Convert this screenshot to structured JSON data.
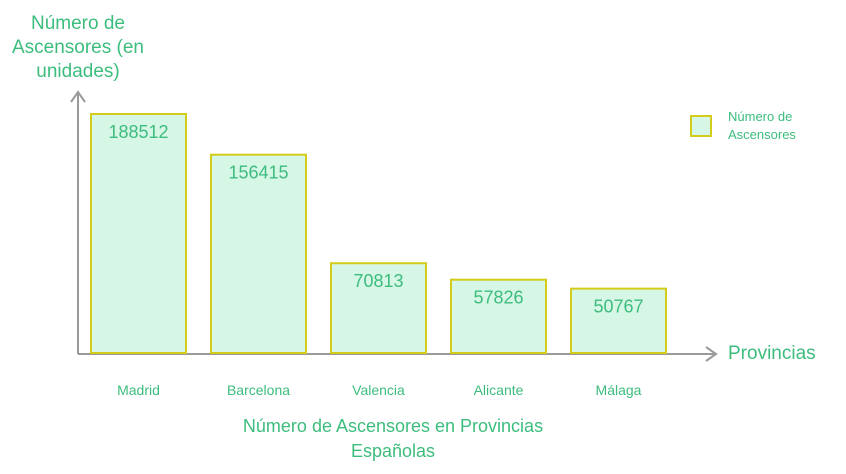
{
  "chart_data": {
    "type": "bar",
    "title": "Número de Ascensores en Provincias Españolas",
    "xlabel": "Provincias",
    "ylabel": "Número de Ascensores (en unidades)",
    "categories": [
      "Madrid",
      "Barcelona",
      "Valencia",
      "Alicante",
      "Málaga"
    ],
    "series": [
      {
        "name": "Número de Ascensores",
        "values": [
          188512,
          156415,
          70813,
          57826,
          50767
        ]
      }
    ],
    "ylim": [
      0,
      188512
    ],
    "grid": false,
    "legend": "top-right",
    "colors": {
      "bar_fill": "#d6f6e6",
      "bar_stroke": "#d4cc1a",
      "text": "#3dbd7d",
      "axis": "#9a9a9a"
    }
  }
}
